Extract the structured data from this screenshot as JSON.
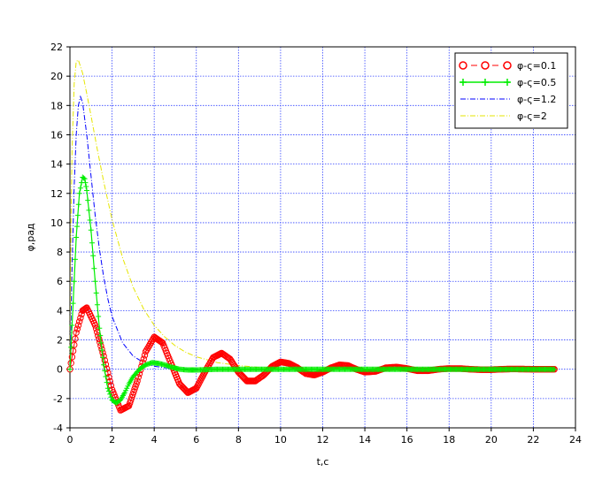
{
  "chart_data": {
    "type": "line",
    "xlabel": "t,c",
    "ylabel": "φ,рад",
    "xlim": [
      0,
      24
    ],
    "ylim": [
      -4,
      22
    ],
    "xticks": [
      0,
      2,
      4,
      6,
      8,
      10,
      12,
      14,
      16,
      18,
      20,
      22,
      24
    ],
    "yticks": [
      -4,
      -2,
      0,
      2,
      4,
      6,
      8,
      10,
      12,
      14,
      16,
      18,
      20,
      22
    ],
    "grid": true,
    "legend_position": "top-right",
    "series": [
      {
        "name": "φ-ς=0.1",
        "color": "#ff0000",
        "style": "dashed-circles",
        "x": [
          0,
          0.3,
          0.6,
          0.8,
          1.2,
          1.6,
          2.0,
          2.4,
          2.8,
          3.2,
          3.6,
          4.0,
          4.4,
          4.8,
          5.2,
          5.6,
          6.0,
          6.4,
          6.8,
          7.2,
          7.6,
          8.0,
          8.4,
          8.8,
          9.2,
          9.6,
          10.0,
          10.4,
          10.8,
          11.2,
          11.6,
          12.0,
          12.4,
          12.8,
          13.2,
          13.6,
          14.0,
          14.5,
          15.0,
          15.5,
          16.0,
          16.5,
          17.0,
          17.5,
          18.0,
          18.5,
          19.0,
          19.5,
          20.0,
          20.5,
          21.0,
          21.5,
          22.0,
          22.5,
          23.0
        ],
        "y": [
          0,
          2.5,
          4.0,
          4.2,
          3.0,
          0.9,
          -1.4,
          -2.8,
          -2.5,
          -0.8,
          1.2,
          2.2,
          1.8,
          0.4,
          -1.0,
          -1.6,
          -1.3,
          -0.2,
          0.8,
          1.1,
          0.7,
          -0.2,
          -0.8,
          -0.8,
          -0.4,
          0.2,
          0.5,
          0.4,
          0.1,
          -0.3,
          -0.4,
          -0.2,
          0.1,
          0.3,
          0.25,
          0.0,
          -0.2,
          -0.15,
          0.1,
          0.15,
          0.05,
          -0.1,
          -0.1,
          0.0,
          0.05,
          0.05,
          0.0,
          -0.03,
          -0.03,
          0.0,
          0.02,
          0.01,
          0.0,
          0.0,
          0.0
        ]
      },
      {
        "name": "φ-ς=0.5",
        "color": "#00ee00",
        "style": "solid-plus",
        "x": [
          0,
          0.15,
          0.3,
          0.45,
          0.6,
          0.7,
          0.8,
          1.0,
          1.2,
          1.4,
          1.6,
          1.8,
          2.0,
          2.2,
          2.4,
          2.6,
          2.8,
          3.0,
          3.3,
          3.6,
          3.9,
          4.2,
          4.5,
          4.8,
          5.2,
          5.6,
          6.0,
          7.0,
          8.0,
          10.0,
          12.0,
          14.0,
          16.0,
          18.0,
          20.0,
          23.0
        ],
        "y": [
          0,
          4.5,
          9.0,
          12.0,
          13.1,
          13.0,
          12.2,
          9.5,
          6.0,
          2.8,
          0.3,
          -1.3,
          -2.1,
          -2.3,
          -2.1,
          -1.6,
          -1.0,
          -0.5,
          0.0,
          0.3,
          0.45,
          0.4,
          0.3,
          0.15,
          0.0,
          -0.05,
          -0.05,
          0.0,
          0.0,
          0.0,
          0.0,
          0.0,
          0.0,
          0.0,
          0.0,
          0.0
        ]
      },
      {
        "name": "φ-ς=1.2",
        "color": "#0000ff",
        "style": "dash-dot",
        "x": [
          0,
          0.1,
          0.2,
          0.3,
          0.4,
          0.5,
          0.6,
          0.8,
          1.0,
          1.2,
          1.4,
          1.6,
          1.8,
          2.0,
          2.5,
          3.0,
          3.5,
          4.0,
          4.5,
          5.0,
          6.0,
          7.0,
          8.0,
          10.0,
          12.0,
          15.0,
          18.0,
          21.0,
          23.0
        ],
        "y": [
          0,
          7.0,
          12.5,
          16.0,
          18.0,
          18.6,
          18.2,
          16.0,
          13.2,
          10.5,
          8.2,
          6.3,
          4.8,
          3.6,
          1.8,
          0.9,
          0.45,
          0.2,
          0.1,
          0.05,
          0.0,
          0.0,
          0.0,
          0.0,
          0.0,
          0.0,
          0.0,
          0.0,
          0.0
        ]
      },
      {
        "name": "φ-ς=2",
        "color": "#e6e600",
        "style": "dash-dot",
        "x": [
          0,
          0.05,
          0.1,
          0.2,
          0.3,
          0.4,
          0.6,
          0.8,
          1.0,
          1.3,
          1.6,
          2.0,
          2.5,
          3.0,
          3.5,
          4.0,
          4.5,
          5.0,
          5.5,
          6.0,
          7.0,
          8.0,
          9.0,
          10.0,
          12.0,
          15.0,
          18.0,
          21.0,
          23.0
        ],
        "y": [
          0,
          10.0,
          15.0,
          19.5,
          21.0,
          21.1,
          20.2,
          18.8,
          17.3,
          15.0,
          12.8,
          10.2,
          7.6,
          5.6,
          4.1,
          3.0,
          2.2,
          1.6,
          1.15,
          0.85,
          0.45,
          0.25,
          0.12,
          0.06,
          0.02,
          0.0,
          0.0,
          0.0,
          0.0
        ]
      }
    ]
  }
}
